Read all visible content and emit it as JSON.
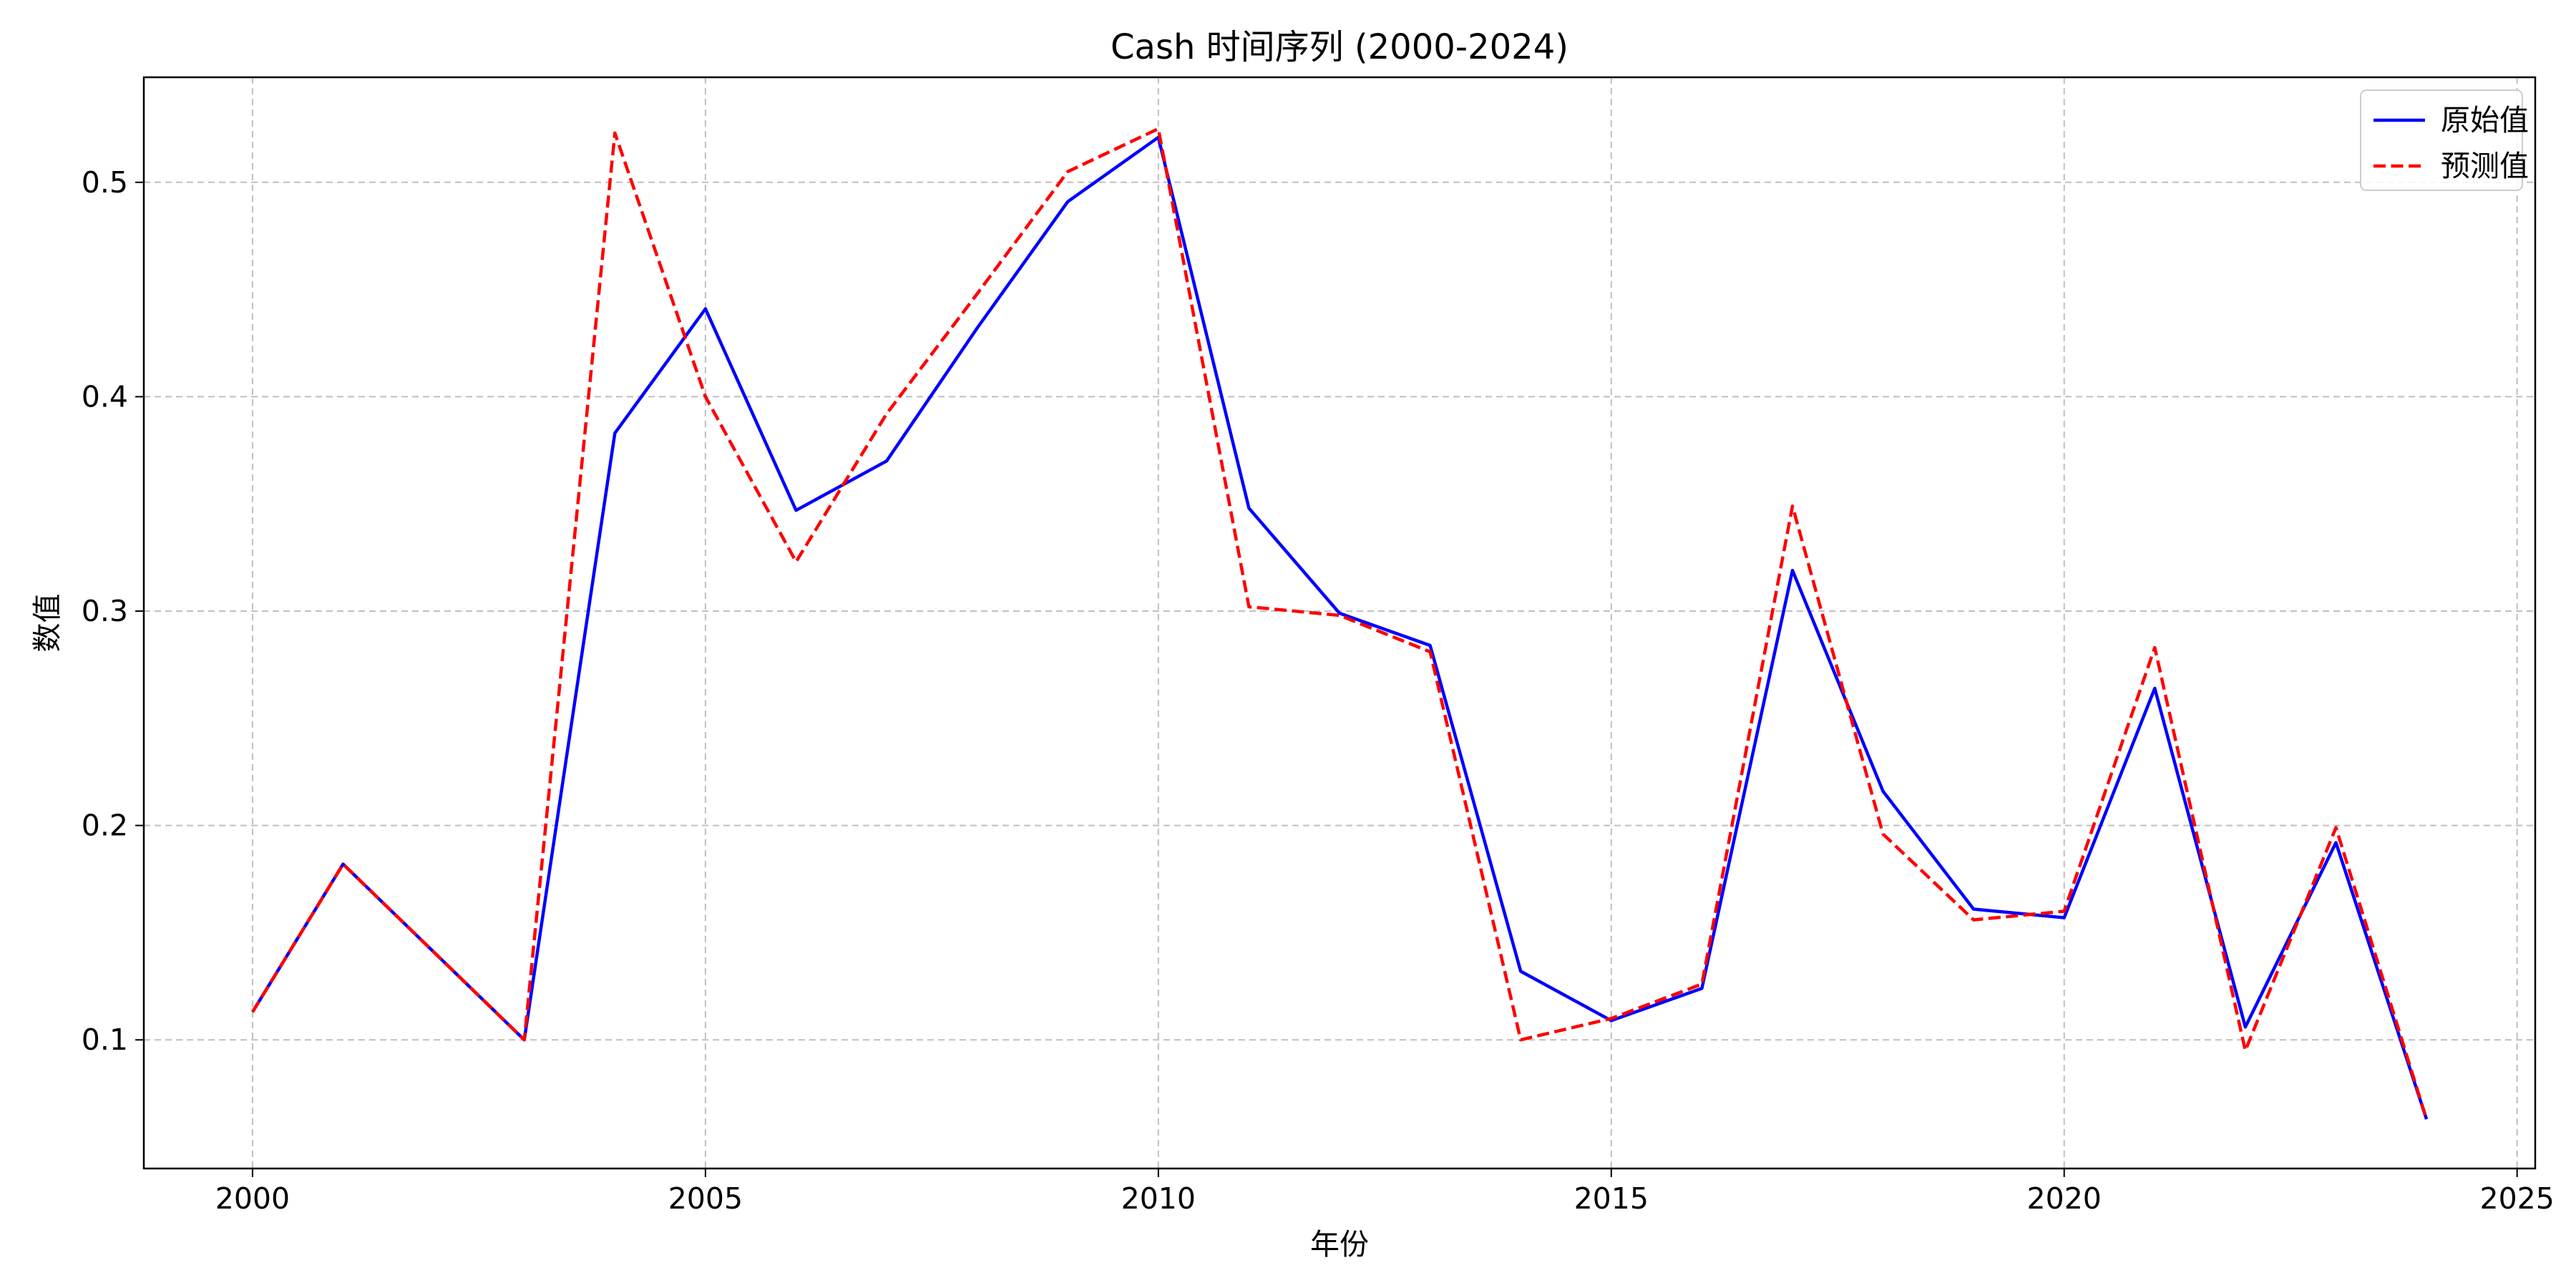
{
  "chart_data": {
    "type": "line",
    "title": "Cash 时间序列 (2000-2024)",
    "xlabel": "年份",
    "ylabel": "数值",
    "xlim": [
      1998.8,
      2025.2
    ],
    "ylim": [
      0.04,
      0.549
    ],
    "x_ticks": [
      2000,
      2005,
      2010,
      2015,
      2020,
      2025
    ],
    "y_ticks": [
      0.1,
      0.2,
      0.3,
      0.4,
      0.5
    ],
    "grid": true,
    "legend_position": "top-right",
    "x": [
      2000,
      2001,
      2002,
      2003,
      2004,
      2005,
      2006,
      2007,
      2008,
      2009,
      2010,
      2011,
      2012,
      2013,
      2014,
      2015,
      2016,
      2017,
      2018,
      2019,
      2020,
      2021,
      2022,
      2023,
      2024
    ],
    "series": [
      {
        "name": "原始值",
        "color": "#0000ff",
        "style": "solid",
        "values": [
          0.113,
          0.182,
          0.141,
          0.1,
          0.383,
          0.441,
          0.347,
          0.37,
          0.432,
          0.491,
          0.521,
          0.348,
          0.299,
          0.284,
          0.132,
          0.109,
          0.124,
          0.319,
          0.216,
          0.161,
          0.157,
          0.264,
          0.106,
          0.192,
          0.063
        ]
      },
      {
        "name": "预测值",
        "color": "#ff0000",
        "style": "dashed",
        "values": [
          0.113,
          0.182,
          0.141,
          0.1,
          0.523,
          0.4,
          0.323,
          0.392,
          0.448,
          0.505,
          0.525,
          0.302,
          0.298,
          0.281,
          0.1,
          0.11,
          0.126,
          0.349,
          0.196,
          0.156,
          0.16,
          0.283,
          0.095,
          0.199,
          0.063
        ]
      }
    ]
  }
}
